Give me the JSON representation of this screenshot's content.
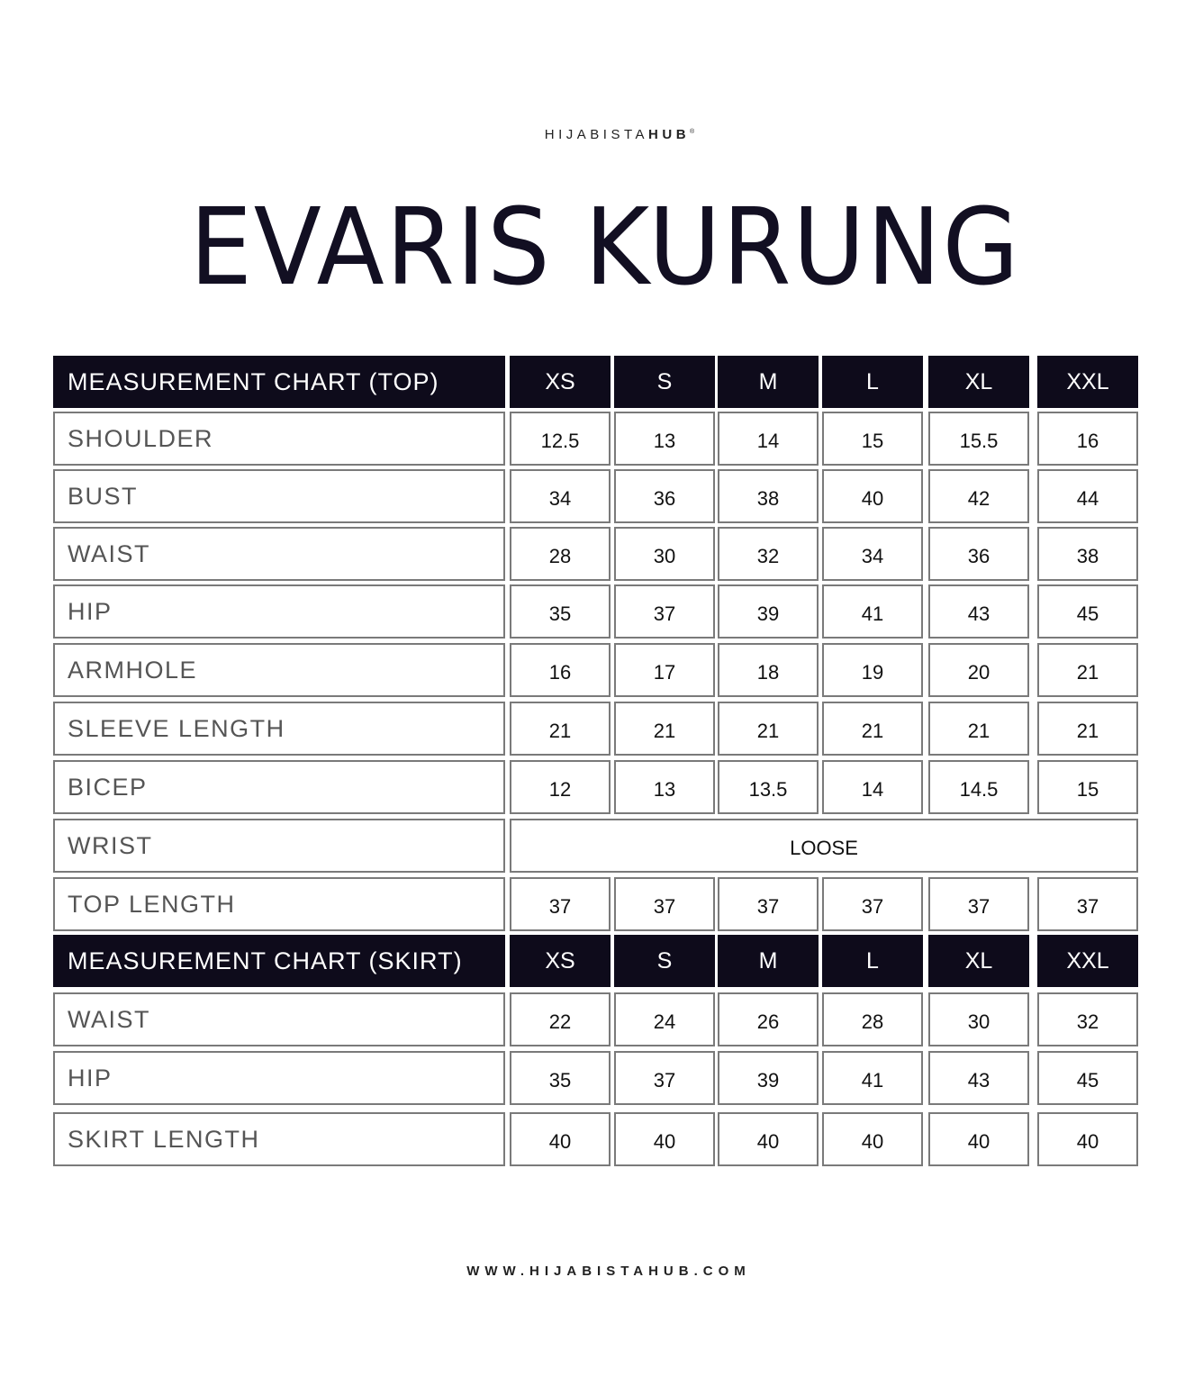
{
  "brand": {
    "name_light": "HIJABISTA",
    "name_bold": "HUB",
    "mark": "®"
  },
  "title": "EVARIS KURUNG",
  "sizes": [
    "XS",
    "S",
    "M",
    "L",
    "XL",
    "XXL"
  ],
  "top": {
    "header": "MEASUREMENT CHART (TOP)",
    "rows": [
      {
        "label": "SHOULDER",
        "values": [
          "12.5",
          "13",
          "14",
          "15",
          "15.5",
          "16"
        ]
      },
      {
        "label": "BUST",
        "values": [
          "34",
          "36",
          "38",
          "40",
          "42",
          "44"
        ]
      },
      {
        "label": "WAIST",
        "values": [
          "28",
          "30",
          "32",
          "34",
          "36",
          "38"
        ]
      },
      {
        "label": "HIP",
        "values": [
          "35",
          "37",
          "39",
          "41",
          "43",
          "45"
        ]
      },
      {
        "label": "ARMHOLE",
        "values": [
          "16",
          "17",
          "18",
          "19",
          "20",
          "21"
        ]
      },
      {
        "label": "SLEEVE LENGTH",
        "values": [
          "21",
          "21",
          "21",
          "21",
          "21",
          "21"
        ]
      },
      {
        "label": "BICEP",
        "values": [
          "12",
          "13",
          "13.5",
          "14",
          "14.5",
          "15"
        ]
      },
      {
        "label": "WRIST",
        "merged": "LOOSE"
      },
      {
        "label": "TOP LENGTH",
        "values": [
          "37",
          "37",
          "37",
          "37",
          "37",
          "37"
        ]
      }
    ]
  },
  "skirt": {
    "header": "MEASUREMENT CHART (SKIRT)",
    "rows": [
      {
        "label": "WAIST",
        "values": [
          "22",
          "24",
          "26",
          "28",
          "30",
          "32"
        ]
      },
      {
        "label": "HIP",
        "values": [
          "35",
          "37",
          "39",
          "41",
          "43",
          "45"
        ]
      },
      {
        "label": "SKIRT LENGTH",
        "values": [
          "40",
          "40",
          "40",
          "40",
          "40",
          "40"
        ]
      }
    ]
  },
  "footer": {
    "website": "WWW.HIJABISTAHUB.COM"
  }
}
